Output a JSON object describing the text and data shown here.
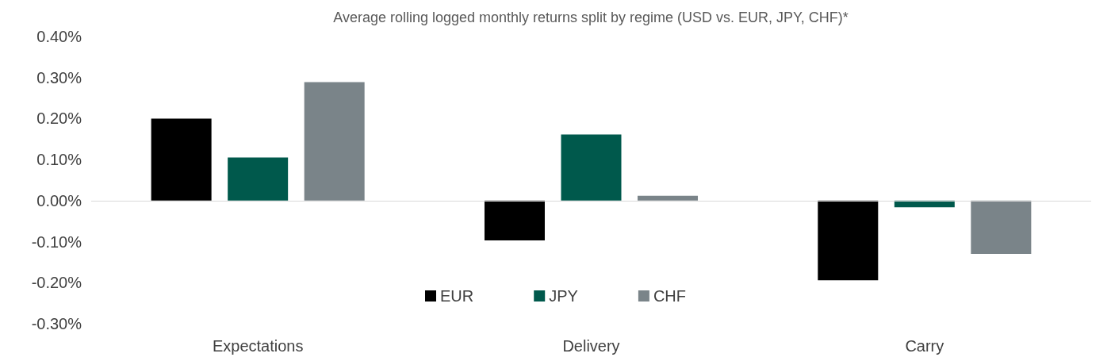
{
  "chart_data": {
    "type": "bar",
    "title": "Average rolling logged monthly returns split by regime (USD vs. EUR, JPY, CHF)*",
    "categories": [
      "Expectations",
      "Delivery",
      "Carry"
    ],
    "series": [
      {
        "name": "EUR",
        "color": "#000000",
        "values": [
          0.2,
          -0.097,
          -0.194
        ]
      },
      {
        "name": "JPY",
        "color": "#00594c",
        "values": [
          0.105,
          0.161,
          -0.016
        ]
      },
      {
        "name": "CHF",
        "color": "#7a8489",
        "values": [
          0.289,
          0.012,
          -0.13
        ]
      }
    ],
    "ylim": [
      -0.3,
      0.4
    ],
    "yticks": [
      {
        "value": -0.3,
        "label": "-0.30%"
      },
      {
        "value": -0.2,
        "label": "-0.20%"
      },
      {
        "value": -0.1,
        "label": "-0.10%"
      },
      {
        "value": 0,
        "label": "0.00%"
      },
      {
        "value": 0.1,
        "label": "0.10%"
      },
      {
        "value": 0.2,
        "label": "0.20%"
      },
      {
        "value": 0.3,
        "label": "0.30%"
      },
      {
        "value": 0.4,
        "label": "0.40%"
      }
    ],
    "grid": false,
    "ref_lines": [
      {
        "axis": "y",
        "value": 0,
        "color": "#d9d9d9"
      }
    ],
    "legend": "bottom"
  }
}
